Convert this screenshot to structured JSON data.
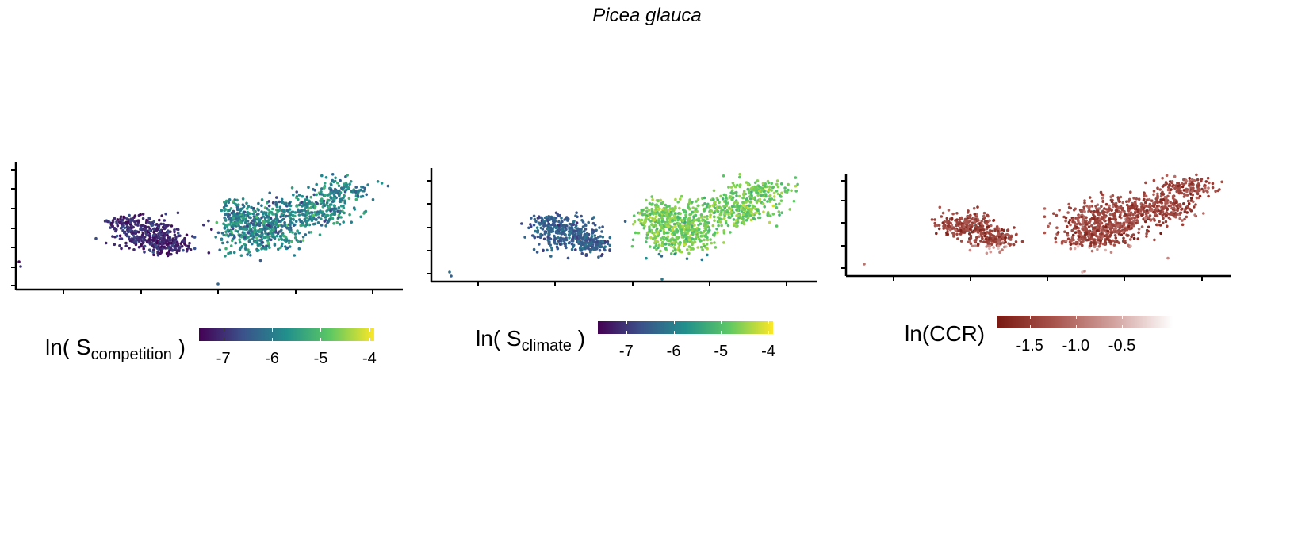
{
  "title": "Picea glauca",
  "chart_data": [
    {
      "type": "scatter",
      "panel": "competition",
      "legend": {
        "prefix": "ln( S",
        "sub": "competition",
        "suffix": " )"
      },
      "colorbar": {
        "colors": [
          "#440154",
          "#3b528b",
          "#21908c",
          "#5dc863",
          "#fde725"
        ],
        "range": [
          -7.5,
          -3.9
        ],
        "ticks": [
          -7,
          -6,
          -5,
          -4
        ],
        "tick_labels": [
          "-7",
          "-6",
          "-5",
          "-4"
        ]
      },
      "axes": {
        "x_ticks": 5,
        "y_ticks": 6,
        "tick_labels_shown": false
      }
    },
    {
      "type": "scatter",
      "panel": "climate",
      "legend": {
        "prefix": "ln( S",
        "sub": "climate",
        "suffix": " )"
      },
      "colorbar": {
        "colors": [
          "#440154",
          "#3b528b",
          "#21908c",
          "#5dc863",
          "#fde725"
        ],
        "range": [
          -7.6,
          -3.9
        ],
        "ticks": [
          -7,
          -6,
          -5,
          -4
        ],
        "tick_labels": [
          "-7",
          "-6",
          "-5",
          "-4"
        ]
      },
      "axes": {
        "x_ticks": 5,
        "y_ticks": 5,
        "tick_labels_shown": false
      }
    },
    {
      "type": "scatter",
      "panel": "ccr",
      "legend": {
        "prefix": "ln(CCR)",
        "sub": "",
        "suffix": ""
      },
      "colorbar": {
        "colors": [
          "#7a1a12",
          "#a9564f",
          "#d2a3a0",
          "#ffffff"
        ],
        "range": [
          -1.85,
          0.05
        ],
        "ticks": [
          -1.5,
          -1.0,
          -0.5
        ],
        "tick_labels": [
          "-1.5",
          "-1.0",
          "-0.5"
        ]
      },
      "axes": {
        "x_ticks": 5,
        "y_ticks": 5,
        "tick_labels_shown": false
      }
    }
  ]
}
